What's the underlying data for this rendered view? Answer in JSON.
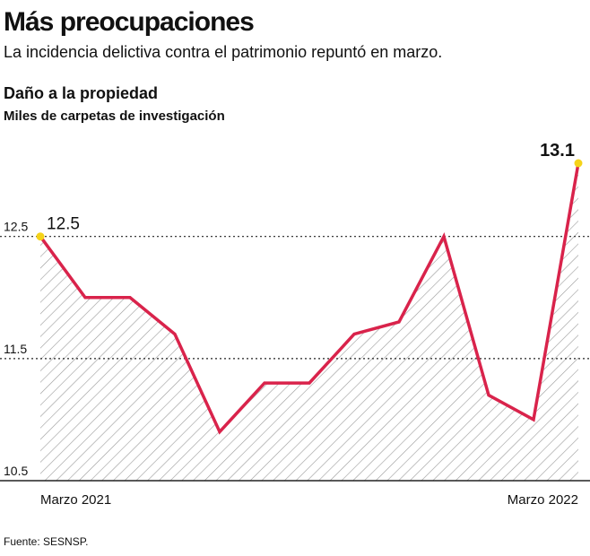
{
  "chart_data": {
    "type": "line",
    "title": "Más preocupaciones",
    "subtitle": "La incidencia delictiva contra el patrimonio repuntó en marzo.",
    "heading": "Daño a la propiedad",
    "y_label": "Miles de carpetas de investigación",
    "source": "Fuente: SESNSP.",
    "categories": [
      "Marzo 2021",
      null,
      null,
      null,
      null,
      null,
      null,
      null,
      null,
      null,
      null,
      null,
      "Marzo 2022"
    ],
    "values": [
      12.5,
      12.0,
      12.0,
      11.7,
      10.9,
      11.3,
      11.3,
      11.7,
      11.8,
      12.5,
      11.2,
      11.0,
      13.1
    ],
    "color": "#d9234b",
    "marker_color": "#f5d319",
    "ylim": [
      10.5,
      13.1
    ],
    "yticks": [
      10.5,
      11.5,
      12.5
    ],
    "grid": true
  }
}
